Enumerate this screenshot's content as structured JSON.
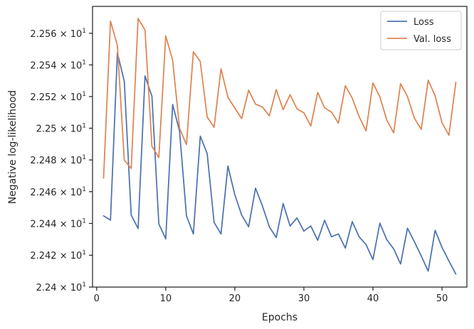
{
  "chart_data": {
    "type": "line",
    "title": "",
    "xlabel": "Epochs",
    "ylabel": "Negative log-likelihood",
    "xlim": [
      -0.6,
      53.6
    ],
    "ylim": [
      22.4,
      22.577
    ],
    "x_ticks": [
      0,
      10,
      20,
      30,
      40,
      50
    ],
    "x_tick_labels": [
      "0",
      "10",
      "20",
      "30",
      "40",
      "50"
    ],
    "y_ticks": [
      22.4,
      22.42,
      22.44,
      22.46,
      22.48,
      22.5,
      22.52,
      22.54,
      22.56
    ],
    "y_tick_labels": [
      {
        "mantissa": "2.24",
        "exp": "1"
      },
      {
        "mantissa": "2.242",
        "exp": "1"
      },
      {
        "mantissa": "2.244",
        "exp": "1"
      },
      {
        "mantissa": "2.246",
        "exp": "1"
      },
      {
        "mantissa": "2.248",
        "exp": "1"
      },
      {
        "mantissa": "2.25",
        "exp": "1"
      },
      {
        "mantissa": "2.252",
        "exp": "1"
      },
      {
        "mantissa": "2.254",
        "exp": "1"
      },
      {
        "mantissa": "2.256",
        "exp": "1"
      }
    ],
    "scale": "log",
    "grid": false,
    "legend_position": "top-right",
    "x": [
      1,
      2,
      3,
      4,
      5,
      6,
      7,
      8,
      9,
      10,
      11,
      12,
      13,
      14,
      15,
      16,
      17,
      18,
      19,
      20,
      21,
      22,
      23,
      24,
      25,
      26,
      27,
      28,
      29,
      30,
      31,
      32,
      33,
      34,
      35,
      36,
      37,
      38,
      39,
      40,
      41,
      42,
      43,
      44,
      45,
      46,
      47,
      48,
      49,
      50,
      51,
      52
    ],
    "series": [
      {
        "name": "Loss",
        "color": "#4c72b0",
        "values": [
          22.4448,
          22.4421,
          22.5475,
          22.5296,
          22.4452,
          22.4368,
          22.533,
          22.5202,
          22.4397,
          22.4303,
          22.515,
          22.4982,
          22.4448,
          22.4334,
          22.495,
          22.484,
          22.4407,
          22.4334,
          22.4762,
          22.4581,
          22.4452,
          22.4379,
          22.4622,
          22.451,
          22.4379,
          22.4311,
          22.4525,
          22.4384,
          22.4435,
          22.4352,
          22.4384,
          22.4294,
          22.442,
          22.4316,
          22.4334,
          22.4245,
          22.4411,
          22.4316,
          22.4267,
          22.4173,
          22.4402,
          22.4298,
          22.424,
          22.4145,
          22.437,
          22.4285,
          22.4195,
          22.41,
          22.4357,
          22.4249,
          22.4164,
          22.4082
        ]
      },
      {
        "name": "Val. loss",
        "color": "#dd8452",
        "values": [
          22.4685,
          22.5677,
          22.5523,
          22.4799,
          22.4747,
          22.5694,
          22.562,
          22.4886,
          22.4815,
          22.5583,
          22.5429,
          22.5,
          22.4897,
          22.5483,
          22.5421,
          22.5071,
          22.5006,
          22.5376,
          22.5196,
          22.5127,
          22.5061,
          22.524,
          22.5152,
          22.5134,
          22.5078,
          22.5244,
          22.5117,
          22.5211,
          22.5123,
          22.5097,
          22.5014,
          22.5226,
          22.5129,
          22.5102,
          22.5032,
          22.5268,
          22.519,
          22.5073,
          22.4983,
          22.5286,
          22.5198,
          22.5052,
          22.4971,
          22.5281,
          22.52,
          22.5063,
          22.4993,
          22.5303,
          22.5205,
          22.5034,
          22.4956,
          22.529
        ]
      }
    ]
  }
}
